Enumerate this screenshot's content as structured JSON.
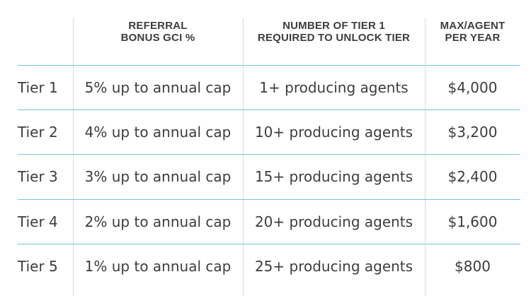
{
  "headers": [
    {
      "line1": "",
      "line2": ""
    },
    {
      "line1": "REFERRAL",
      "line2": "BONUS GCI %"
    },
    {
      "line1": "NUMBER OF TIER 1",
      "line2": "REQUIRED TO UNLOCK TIER"
    },
    {
      "line1": "MAX/AGENT",
      "line2": "PER YEAR"
    }
  ],
  "rows": [
    {
      "tier": "Tier 1",
      "bonus": "5% up to annual cap",
      "required": "1+ producing agents",
      "max": "$4,000"
    },
    {
      "tier": "Tier 2",
      "bonus": "4% up to annual cap",
      "required": "10+ producing agents",
      "max": "$3,200"
    },
    {
      "tier": "Tier 3",
      "bonus": "3% up to annual cap",
      "required": "15+ producing agents",
      "max": "$2,400"
    },
    {
      "tier": "Tier 4",
      "bonus": "2% up to annual cap",
      "required": "20+ producing agents",
      "max": "$1,600"
    },
    {
      "tier": "Tier 5",
      "bonus": "1% up to annual cap",
      "required": "25+ producing agents",
      "max": "$800"
    }
  ],
  "colors": {
    "row_divider": "#6fc8dc",
    "column_divider": "#dcdcdc",
    "text": "#3d3d3d"
  }
}
